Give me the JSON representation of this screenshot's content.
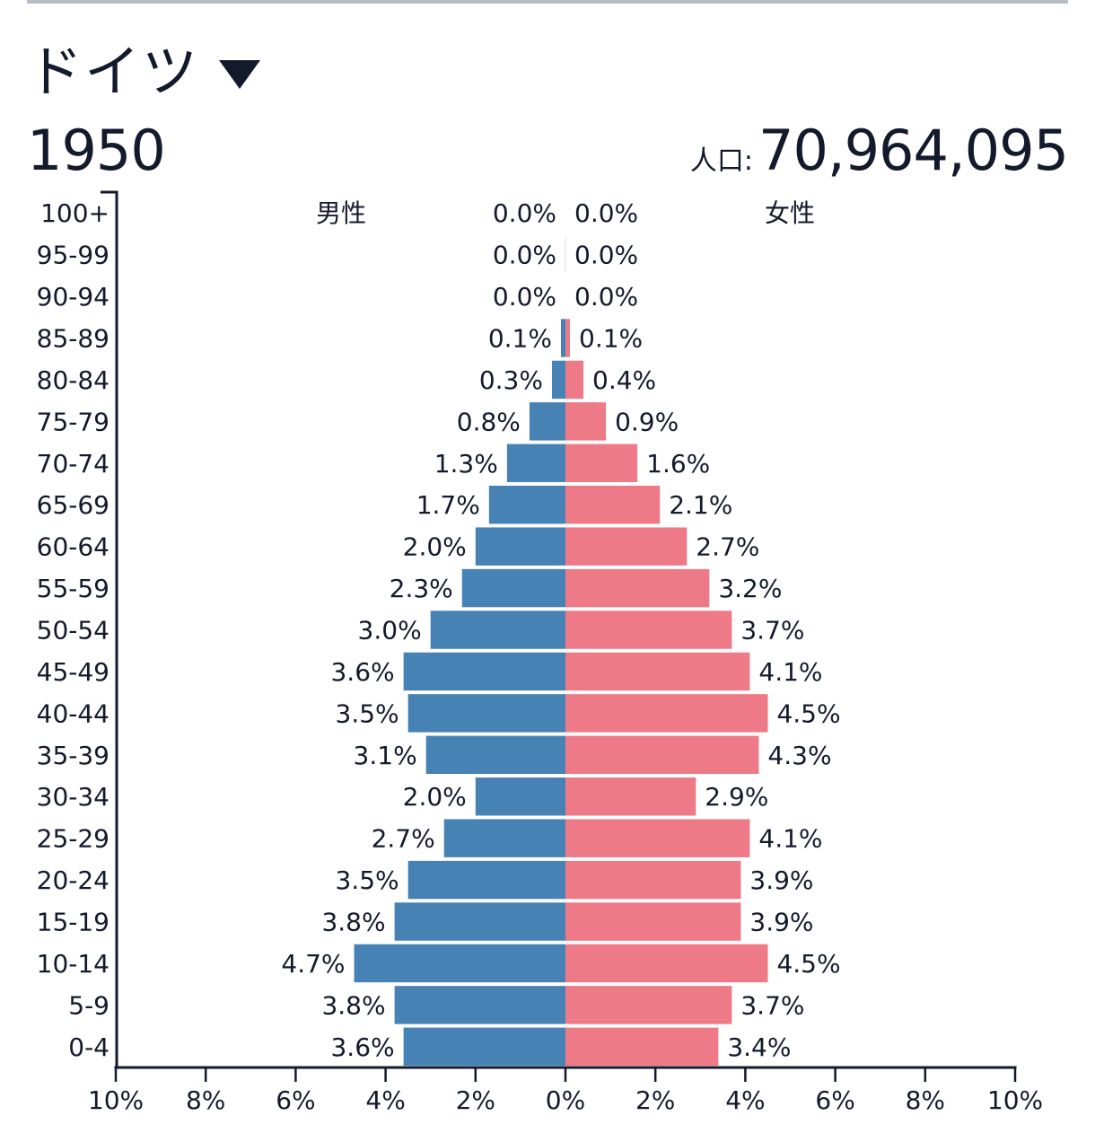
{
  "header": {
    "country": "ドイツ",
    "year": "1950",
    "population_label": "人口:",
    "population": "70,964,095"
  },
  "colors": {
    "male": "#4682b4",
    "female": "#ee7987",
    "text": "#131a2c",
    "rule": "#b9bdc5"
  },
  "chart_data": {
    "type": "bar",
    "orientation": "horizontal-pyramid",
    "title": "",
    "series_labels": {
      "male": "男性",
      "female": "女性"
    },
    "categories": [
      "100+",
      "95-99",
      "90-94",
      "85-89",
      "80-84",
      "75-79",
      "70-74",
      "65-69",
      "60-64",
      "55-59",
      "50-54",
      "45-49",
      "40-44",
      "35-39",
      "30-34",
      "25-29",
      "20-24",
      "15-19",
      "10-14",
      "5-9",
      "0-4"
    ],
    "series": [
      {
        "name": "男性",
        "values": [
          0.0,
          0.0,
          0.0,
          0.1,
          0.3,
          0.8,
          1.3,
          1.7,
          2.0,
          2.3,
          3.0,
          3.6,
          3.5,
          3.1,
          2.0,
          2.7,
          3.5,
          3.8,
          4.7,
          3.8,
          3.6
        ],
        "labels": [
          "0.0%",
          "0.0%",
          "0.0%",
          "0.1%",
          "0.3%",
          "0.8%",
          "1.3%",
          "1.7%",
          "2.0%",
          "2.3%",
          "3.0%",
          "3.6%",
          "3.5%",
          "3.1%",
          "2.0%",
          "2.7%",
          "3.5%",
          "3.8%",
          "4.7%",
          "3.8%",
          "3.6%"
        ]
      },
      {
        "name": "女性",
        "values": [
          0.0,
          0.0,
          0.0,
          0.1,
          0.4,
          0.9,
          1.6,
          2.1,
          2.7,
          3.2,
          3.7,
          4.1,
          4.5,
          4.3,
          2.9,
          4.1,
          3.9,
          3.9,
          4.5,
          3.7,
          3.4
        ],
        "labels": [
          "0.0%",
          "0.0%",
          "0.0%",
          "0.1%",
          "0.4%",
          "0.9%",
          "1.6%",
          "2.1%",
          "2.7%",
          "3.2%",
          "3.7%",
          "4.1%",
          "4.5%",
          "4.3%",
          "2.9%",
          "4.1%",
          "3.9%",
          "3.9%",
          "4.5%",
          "3.7%",
          "3.4%"
        ]
      }
    ],
    "x_ticks": [
      "10%",
      "8%",
      "6%",
      "4%",
      "2%",
      "0%",
      "2%",
      "4%",
      "6%",
      "8%",
      "10%"
    ],
    "xlim": [
      -10,
      10
    ],
    "grid": false,
    "legend": "top-inside"
  }
}
